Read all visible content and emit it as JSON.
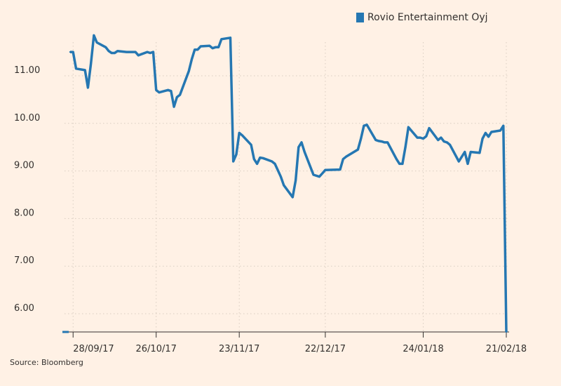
{
  "chart_data": {
    "type": "line",
    "title": "",
    "xlabel": "",
    "ylabel": "",
    "ylim": [
      5.6,
      12.0
    ],
    "y_ticks": [
      6.0,
      7.0,
      8.0,
      9.0,
      10.0,
      11.0
    ],
    "y_tick_labels": [
      "6.00",
      "7.00",
      "8.00",
      "9.00",
      "10.00",
      "11.00"
    ],
    "x_ticks": [
      "2017-09-28",
      "2017-10-26",
      "2017-11-23",
      "2017-12-22",
      "2018-01-24",
      "2018-02-21"
    ],
    "x_tick_labels": [
      "28/09/17",
      "26/10/17",
      "23/11/17",
      "22/12/17",
      "24/01/18",
      "21/02/18"
    ],
    "grid": true,
    "legend_position": "top-right",
    "series": [
      {
        "name": "Rovio Entertainment Oyj",
        "color": "#2577b2",
        "x": [
          "2017-09-27",
          "2017-09-28",
          "2017-09-29",
          "2017-10-02",
          "2017-10-03",
          "2017-10-04",
          "2017-10-05",
          "2017-10-06",
          "2017-10-09",
          "2017-10-10",
          "2017-10-11",
          "2017-10-12",
          "2017-10-13",
          "2017-10-16",
          "2017-10-17",
          "2017-10-18",
          "2017-10-19",
          "2017-10-20",
          "2017-10-23",
          "2017-10-24",
          "2017-10-25",
          "2017-10-26",
          "2017-10-27",
          "2017-10-30",
          "2017-10-31",
          "2017-11-01",
          "2017-11-02",
          "2017-11-03",
          "2017-11-06",
          "2017-11-07",
          "2017-11-08",
          "2017-11-09",
          "2017-11-10",
          "2017-11-13",
          "2017-11-14",
          "2017-11-15",
          "2017-11-16",
          "2017-11-17",
          "2017-11-20",
          "2017-11-21",
          "2017-11-22",
          "2017-11-23",
          "2017-11-24",
          "2017-11-27",
          "2017-11-28",
          "2017-11-29",
          "2017-11-30",
          "2017-12-01",
          "2017-12-04",
          "2017-12-05",
          "2017-12-07",
          "2017-12-08",
          "2017-12-11",
          "2017-12-12",
          "2017-12-13",
          "2017-12-14",
          "2017-12-15",
          "2017-12-18",
          "2017-12-19",
          "2017-12-20",
          "2017-12-21",
          "2017-12-22",
          "2017-12-27",
          "2017-12-28",
          "2017-12-29",
          "2018-01-02",
          "2018-01-03",
          "2018-01-04",
          "2018-01-05",
          "2018-01-08",
          "2018-01-09",
          "2018-01-10",
          "2018-01-11",
          "2018-01-12",
          "2018-01-15",
          "2018-01-16",
          "2018-01-17",
          "2018-01-18",
          "2018-01-19",
          "2018-01-22",
          "2018-01-23",
          "2018-01-24",
          "2018-01-25",
          "2018-01-26",
          "2018-01-29",
          "2018-01-30",
          "2018-01-31",
          "2018-02-01",
          "2018-02-02",
          "2018-02-05",
          "2018-02-06",
          "2018-02-07",
          "2018-02-08",
          "2018-02-09",
          "2018-02-12",
          "2018-02-13",
          "2018-02-14",
          "2018-02-15",
          "2018-02-16",
          "2018-02-19",
          "2018-02-20",
          "2018-02-21"
        ],
        "values": [
          11.5,
          11.5,
          11.15,
          11.12,
          10.75,
          11.25,
          11.85,
          11.7,
          11.6,
          11.52,
          11.48,
          11.48,
          11.52,
          11.5,
          11.5,
          11.5,
          11.5,
          11.43,
          11.5,
          11.48,
          11.5,
          10.7,
          10.65,
          10.7,
          10.68,
          10.35,
          10.55,
          10.6,
          11.1,
          11.35,
          11.55,
          11.55,
          11.62,
          11.63,
          11.58,
          11.6,
          11.6,
          11.77,
          11.8,
          9.2,
          9.35,
          9.8,
          9.75,
          9.55,
          9.25,
          9.15,
          9.28,
          9.27,
          9.2,
          9.15,
          8.88,
          8.7,
          8.45,
          8.8,
          9.5,
          9.6,
          9.4,
          8.92,
          8.9,
          8.88,
          8.95,
          9.02,
          9.03,
          9.25,
          9.3,
          9.45,
          9.68,
          9.95,
          9.97,
          9.65,
          9.63,
          9.62,
          9.6,
          9.6,
          9.25,
          9.15,
          9.15,
          9.5,
          9.92,
          9.7,
          9.7,
          9.68,
          9.73,
          9.9,
          9.65,
          9.7,
          9.62,
          9.6,
          9.55,
          9.2,
          9.3,
          9.4,
          9.15,
          9.4,
          9.38,
          9.68,
          9.8,
          9.72,
          9.82,
          9.85,
          9.95,
          5.6
        ]
      }
    ]
  },
  "source_text": "Source: Bloomberg"
}
